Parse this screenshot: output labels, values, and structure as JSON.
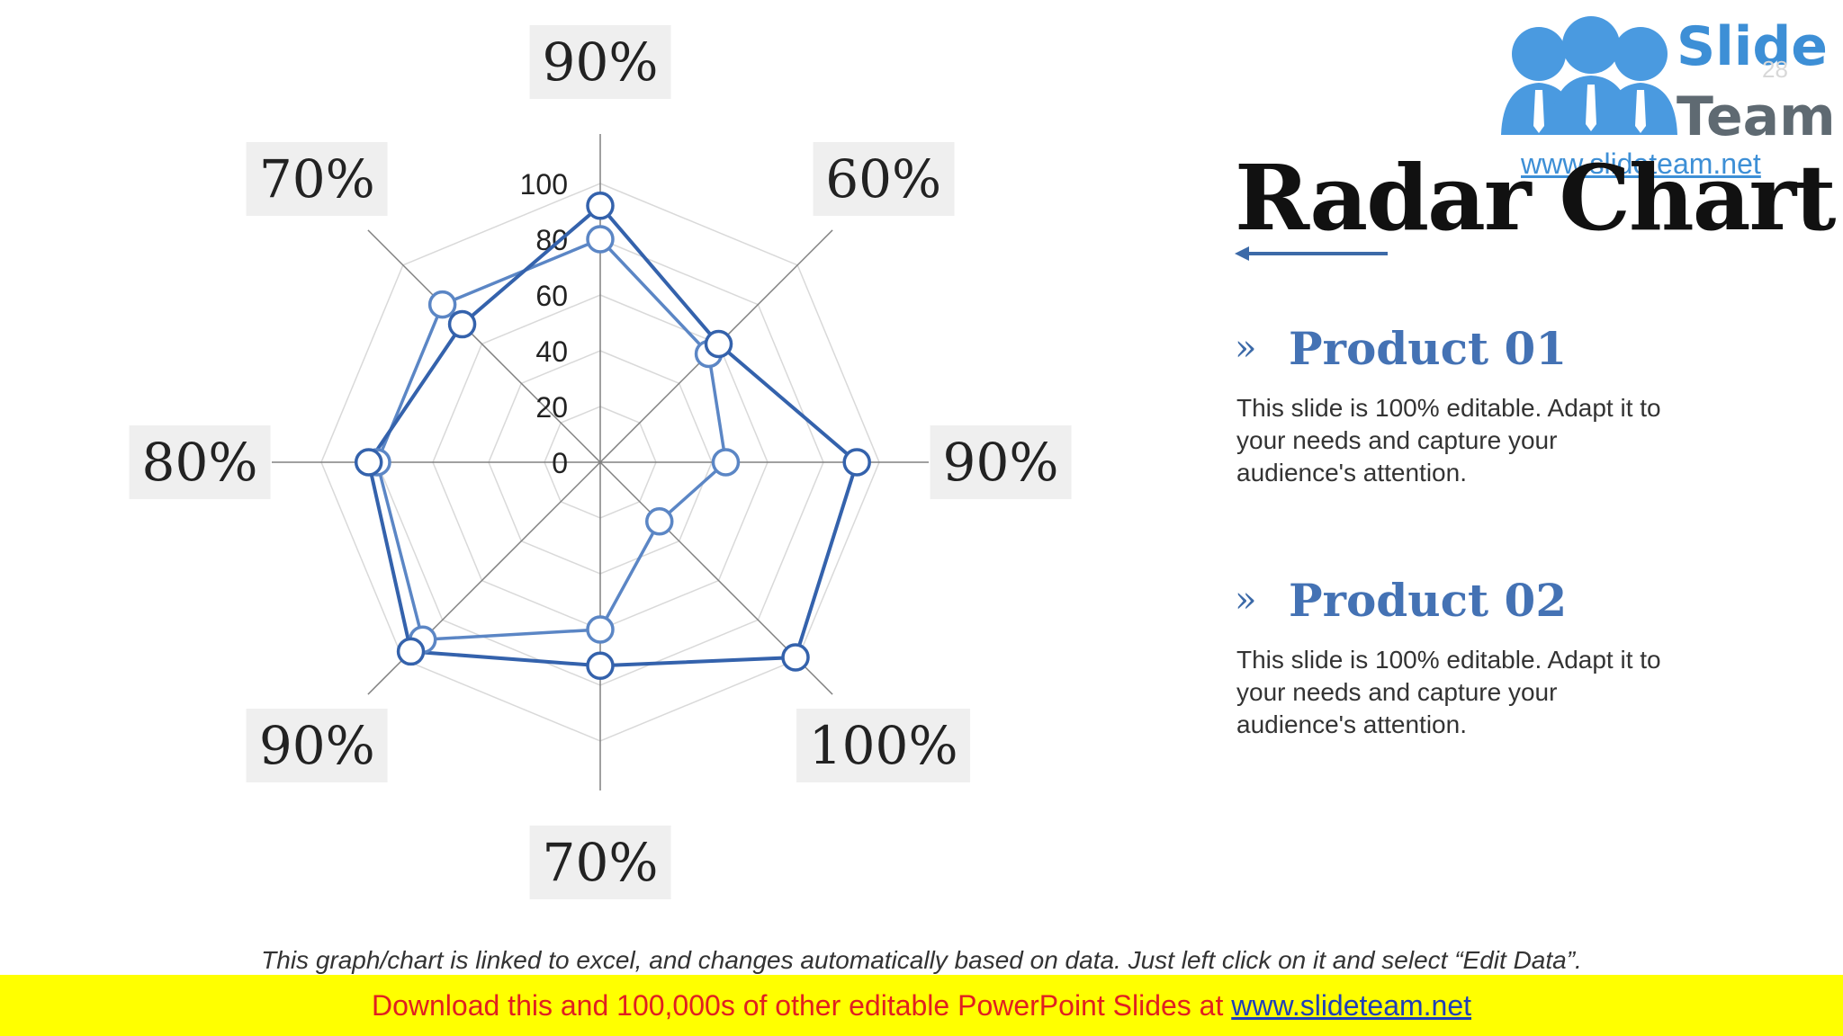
{
  "logo": {
    "line1": "Slide",
    "line2": "Team",
    "url": "www.slideteam.net",
    "page_number": "28"
  },
  "title": "Radar Chart",
  "products": [
    {
      "name": "Product 01",
      "description": "This slide is 100% editable. Adapt it to your needs and capture your audience's attention."
    },
    {
      "name": "Product 02",
      "description": "This slide is 100% editable. Adapt it to your needs and capture your audience's attention."
    }
  ],
  "footnote": "This graph/chart is linked to excel, and changes automatically based on data. Just left click on it and select “Edit Data”.",
  "banner": {
    "text": "Download this and 100,000s of other editable PowerPoint Slides at",
    "link": "www.slideteam.net"
  },
  "colors": {
    "series_1": "#5b86c5",
    "series_2": "#3462ac",
    "accent": "#4472b4",
    "banner_bg": "#ffff00",
    "banner_text": "#e02020"
  },
  "chart_data": {
    "type": "radar",
    "axis_labels": [
      "90%",
      "60%",
      "90%",
      "100%",
      "70%",
      "90%",
      "80%",
      "70%"
    ],
    "radial_ticks": [
      0,
      20,
      40,
      60,
      80,
      100
    ],
    "rlim": [
      0,
      100
    ],
    "series": [
      {
        "values": [
          80,
          55,
          45,
          30,
          60,
          90,
          80,
          80
        ]
      },
      {
        "values": [
          92,
          60,
          92,
          99,
          73,
          96,
          83,
          70
        ]
      }
    ]
  }
}
